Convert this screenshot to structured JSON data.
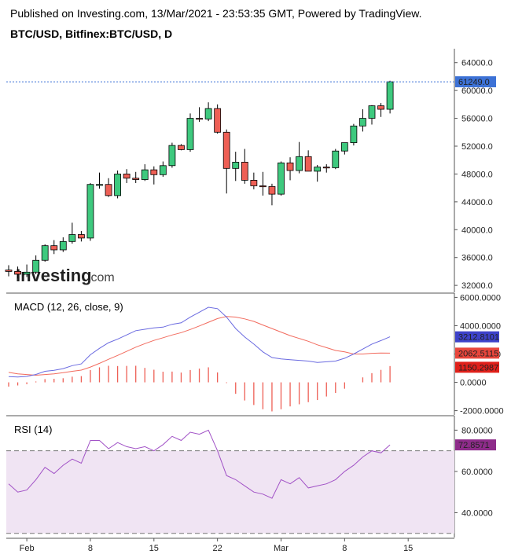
{
  "header": {
    "published": "Published on Investing.com, 13/Mar/2021 - 23:53:35 GMT, Powered by TradingView.",
    "symbol": "BTC/USD, Bitfinex:BTC/USD, D"
  },
  "watermark": {
    "brand": "Investing",
    "suffix": ".com"
  },
  "colors": {
    "up": "#3ec97e",
    "down": "#ee5f55",
    "macd_line": "#6a6ae0",
    "signal_line": "#f26b5e",
    "rsi_line": "#a152c6",
    "rsi_band": "#f0e4f3",
    "price_tag": "#3d72d6"
  },
  "chart_data": [
    {
      "type": "candlestick",
      "title": "BTC/USD, Bitfinex:BTC/USD, D",
      "ylim": [
        31000,
        66000
      ],
      "yticks": [
        "32000.0",
        "36000.0",
        "40000.0",
        "44000.0",
        "48000.0",
        "52000.0",
        "56000.0",
        "60000.0",
        "64000.0"
      ],
      "last_price_label": "61249.0",
      "last_price": 61249,
      "x_tick_labels": [
        "Feb",
        "8",
        "15",
        "22",
        "Mar",
        "8",
        "15"
      ],
      "candles": [
        {
          "o": 34200,
          "h": 34900,
          "l": 33300,
          "c": 34000
        },
        {
          "o": 34000,
          "h": 34700,
          "l": 33000,
          "c": 33600
        },
        {
          "o": 33600,
          "h": 35000,
          "l": 33200,
          "c": 33900
        },
        {
          "o": 33900,
          "h": 36300,
          "l": 33600,
          "c": 35600
        },
        {
          "o": 35600,
          "h": 37900,
          "l": 35400,
          "c": 37700
        },
        {
          "o": 37700,
          "h": 38500,
          "l": 36500,
          "c": 37100
        },
        {
          "o": 37100,
          "h": 38900,
          "l": 36800,
          "c": 38300
        },
        {
          "o": 38300,
          "h": 41000,
          "l": 38000,
          "c": 39300
        },
        {
          "o": 39300,
          "h": 39800,
          "l": 38300,
          "c": 38800
        },
        {
          "o": 38800,
          "h": 46700,
          "l": 38400,
          "c": 46500
        },
        {
          "o": 46500,
          "h": 48200,
          "l": 45900,
          "c": 46500
        },
        {
          "o": 46500,
          "h": 47400,
          "l": 44700,
          "c": 44900
        },
        {
          "o": 44900,
          "h": 48500,
          "l": 44500,
          "c": 48000
        },
        {
          "o": 48000,
          "h": 48700,
          "l": 46700,
          "c": 47400
        },
        {
          "o": 47400,
          "h": 48300,
          "l": 46700,
          "c": 47200
        },
        {
          "o": 47200,
          "h": 49400,
          "l": 47000,
          "c": 48600
        },
        {
          "o": 48600,
          "h": 49100,
          "l": 46500,
          "c": 47900
        },
        {
          "o": 47900,
          "h": 49800,
          "l": 47600,
          "c": 49200
        },
        {
          "o": 49200,
          "h": 52500,
          "l": 48900,
          "c": 52100
        },
        {
          "o": 52100,
          "h": 52300,
          "l": 51400,
          "c": 51500
        },
        {
          "o": 51500,
          "h": 56700,
          "l": 51200,
          "c": 56000
        },
        {
          "o": 56000,
          "h": 57600,
          "l": 55500,
          "c": 55900
        },
        {
          "o": 55900,
          "h": 58300,
          "l": 55600,
          "c": 57400
        },
        {
          "o": 57400,
          "h": 58000,
          "l": 53800,
          "c": 54000
        },
        {
          "o": 54000,
          "h": 54400,
          "l": 45200,
          "c": 48800
        },
        {
          "o": 48800,
          "h": 51200,
          "l": 47000,
          "c": 49700
        },
        {
          "o": 49700,
          "h": 51600,
          "l": 46600,
          "c": 47100
        },
        {
          "o": 47100,
          "h": 48200,
          "l": 45800,
          "c": 46300
        },
        {
          "o": 46300,
          "h": 48300,
          "l": 44900,
          "c": 46200
        },
        {
          "o": 46200,
          "h": 46600,
          "l": 43500,
          "c": 45100
        },
        {
          "o": 45100,
          "h": 49800,
          "l": 44900,
          "c": 49600
        },
        {
          "o": 49600,
          "h": 50400,
          "l": 47100,
          "c": 48500
        },
        {
          "o": 48500,
          "h": 52600,
          "l": 48100,
          "c": 50500
        },
        {
          "o": 50500,
          "h": 51400,
          "l": 48400,
          "c": 48400
        },
        {
          "o": 48400,
          "h": 49300,
          "l": 46900,
          "c": 49000
        },
        {
          "o": 49000,
          "h": 49400,
          "l": 48200,
          "c": 48900
        },
        {
          "o": 48900,
          "h": 51600,
          "l": 48700,
          "c": 51300
        },
        {
          "o": 51300,
          "h": 52400,
          "l": 50800,
          "c": 52500
        },
        {
          "o": 52500,
          "h": 55200,
          "l": 52100,
          "c": 54900
        },
        {
          "o": 54900,
          "h": 57300,
          "l": 54100,
          "c": 56000
        },
        {
          "o": 56000,
          "h": 57900,
          "l": 55100,
          "c": 57800
        },
        {
          "o": 57800,
          "h": 58200,
          "l": 56200,
          "c": 57300
        },
        {
          "o": 57300,
          "h": 61400,
          "l": 56700,
          "c": 61249
        }
      ]
    },
    {
      "type": "line",
      "title": "MACD (12, 26, close, 9)",
      "ylim": [
        -2300,
        6300
      ],
      "yticks": [
        "-2000.0000",
        "0.0000",
        "2000.0000",
        "4000.0000",
        "6000.0000"
      ],
      "last_labels": {
        "macd": "3212.8101",
        "signal": "2062.5115",
        "histogram": "1150.2987"
      },
      "series": [
        {
          "key": "macd",
          "values": [
            400,
            380,
            420,
            560,
            780,
            850,
            970,
            1180,
            1300,
            1950,
            2400,
            2800,
            3050,
            3350,
            3650,
            3750,
            3850,
            3900,
            4100,
            4200,
            4600,
            4950,
            5300,
            5200,
            4600,
            3800,
            3200,
            2700,
            2150,
            1750,
            1650,
            1600,
            1550,
            1500,
            1400,
            1450,
            1500,
            1700,
            2000,
            2350,
            2700,
            2950,
            3212.8
          ]
        },
        {
          "key": "signal",
          "values": [
            700,
            600,
            550,
            500,
            550,
            600,
            680,
            780,
            860,
            1080,
            1340,
            1630,
            1900,
            2190,
            2480,
            2730,
            2960,
            3150,
            3340,
            3510,
            3730,
            3980,
            4240,
            4500,
            4650,
            4610,
            4480,
            4300,
            4050,
            3800,
            3550,
            3300,
            3100,
            2900,
            2650,
            2450,
            2250,
            2150,
            2000,
            2000,
            2050,
            2070,
            2062.5
          ]
        },
        {
          "key": "histogram",
          "values": [
            -300,
            -220,
            -130,
            60,
            230,
            250,
            290,
            400,
            440,
            870,
            1060,
            1170,
            1150,
            1160,
            1170,
            1020,
            890,
            750,
            760,
            690,
            870,
            970,
            1060,
            700,
            -50,
            -810,
            -1280,
            -1600,
            -1900,
            -2050,
            -1900,
            -1700,
            -1550,
            -1400,
            -1250,
            -1000,
            -750,
            -450,
            0,
            350,
            650,
            880,
            1150.3
          ]
        }
      ]
    },
    {
      "type": "line",
      "title": "RSI (14)",
      "ylim": [
        28,
        87
      ],
      "yticks": [
        "40.0000",
        "60.0000",
        "80.0000"
      ],
      "bands": [
        70,
        30
      ],
      "last_label": "72.8571",
      "values": [
        54,
        50,
        51,
        56,
        62,
        59,
        63,
        66,
        64,
        75,
        75,
        71,
        74,
        72,
        71,
        72,
        70,
        73,
        77,
        75,
        79,
        78,
        80,
        70,
        58,
        56,
        53,
        50,
        49,
        47,
        56,
        54,
        57,
        52,
        53,
        54,
        56,
        60,
        63,
        67,
        70,
        69,
        72.86
      ]
    }
  ]
}
